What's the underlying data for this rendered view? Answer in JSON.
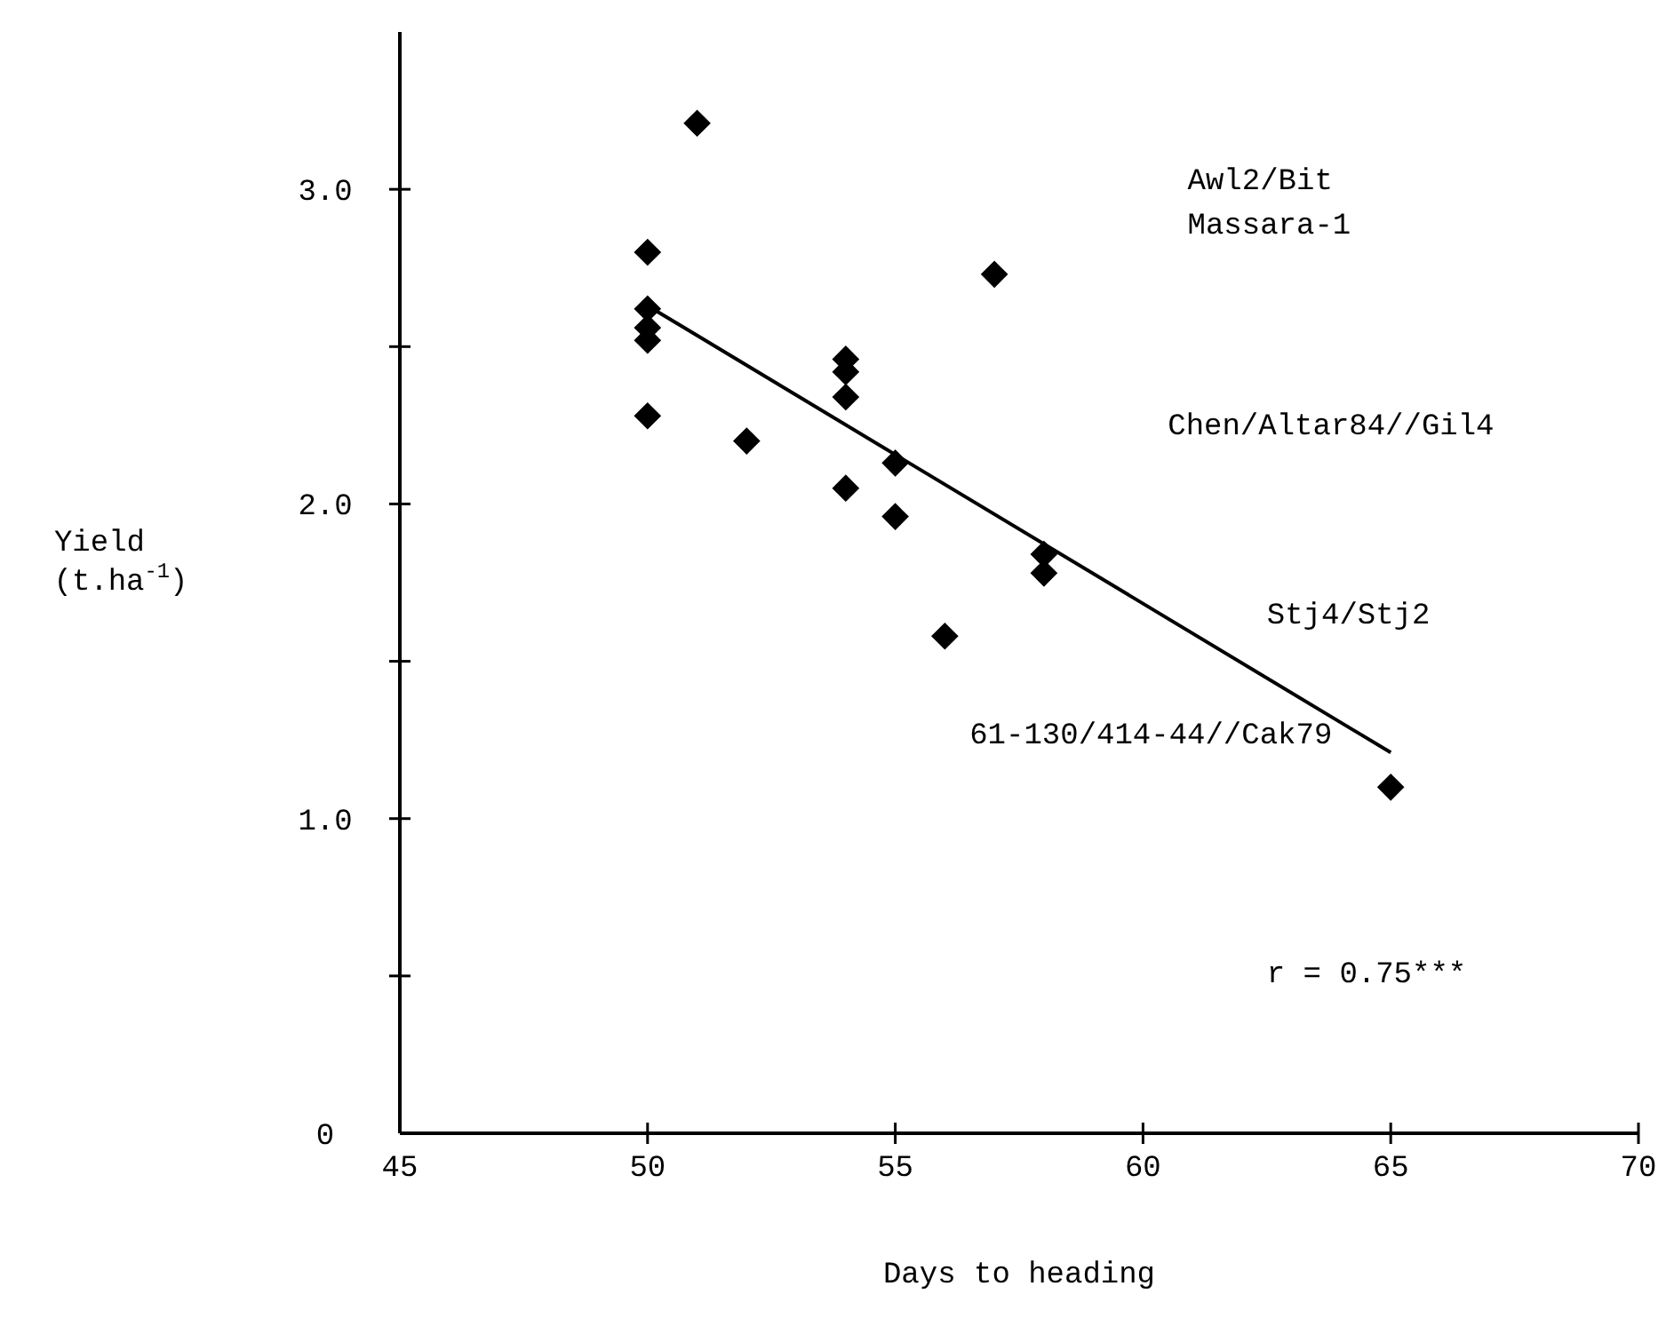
{
  "chart_data": {
    "type": "scatter",
    "xlabel": "Days to heading",
    "ylabel": "Yield (t.ha$^{-1}$)",
    "xlim": [
      45,
      70
    ],
    "xticks": [
      45,
      50,
      55,
      60,
      65,
      70
    ],
    "ylim": [
      0,
      3.5
    ],
    "yticks": [
      0,
      {
        "value": 0.5,
        "label": null
      },
      {
        "value": 1,
        "label": "1.0"
      },
      {
        "value": 1.5,
        "label": null
      },
      {
        "value": 2,
        "label": "2.0"
      },
      {
        "value": 2.5,
        "label": null
      },
      {
        "value": 3,
        "label": "3.0"
      }
    ],
    "grid": false,
    "marker": "diamond",
    "series": [
      {
        "color": "#000000",
        "x": [
          50,
          50,
          50,
          50,
          50,
          51,
          52,
          54,
          54,
          54,
          54,
          55,
          55,
          56,
          57,
          58,
          58,
          65
        ],
        "values": [
          2.8,
          2.62,
          2.56,
          2.52,
          2.28,
          3.21,
          2.2,
          2.46,
          2.42,
          2.34,
          2.05,
          2.13,
          1.96,
          1.58,
          2.73,
          1.84,
          1.78,
          1.1
        ]
      },
      {
        "type": "line",
        "color": "#000000",
        "line_style": "solid",
        "marker": "none",
        "x": [
          50,
          65
        ],
        "values": [
          2.63,
          1.21
        ]
      }
    ],
    "annotations": [
      "Awl2/Bit",
      "Massara-1",
      "Chen/Altar84//Gil4",
      "Stj4/Stj2",
      "61-130/414-44//Cak79",
      "r = 0.75***"
    ]
  }
}
